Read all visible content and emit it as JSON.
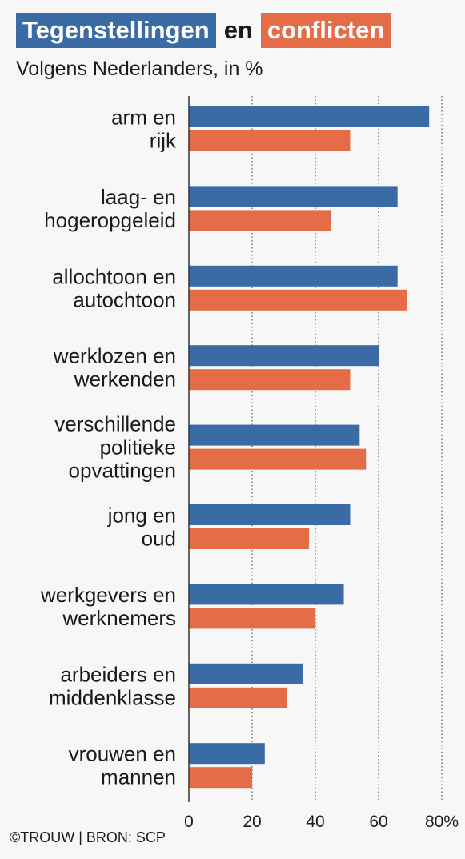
{
  "title": {
    "part1": "Tegenstellingen",
    "part2": "en",
    "part3": "conflicten"
  },
  "subtitle": "Volgens Nederlanders, in %",
  "source": "©TROUW | BRON: SCP",
  "colors": {
    "series1": "#3b6ba5",
    "series2": "#e46d48",
    "axis": "#333333",
    "grid": "#555555",
    "background": "#f7f7f7"
  },
  "chart_data": {
    "type": "bar",
    "orientation": "horizontal",
    "categories": [
      [
        "arm en",
        "rijk"
      ],
      [
        "laag- en",
        "hogeropgeleid"
      ],
      [
        "allochtoon en",
        "autochtoon"
      ],
      [
        "werklozen en",
        "werkenden"
      ],
      [
        "verschillende",
        "politieke",
        "opvattingen"
      ],
      [
        "jong en",
        "oud"
      ],
      [
        "werkgevers en",
        "werknemers"
      ],
      [
        "arbeiders en",
        "middenklasse"
      ],
      [
        "vrouwen en",
        "mannen"
      ]
    ],
    "series": [
      {
        "name": "Tegenstellingen",
        "values": [
          76,
          66,
          66,
          60,
          54,
          51,
          49,
          36,
          24
        ]
      },
      {
        "name": "conflicten",
        "values": [
          51,
          45,
          69,
          51,
          56,
          38,
          40,
          31,
          20
        ]
      }
    ],
    "xlim": [
      0,
      80
    ],
    "xticks": [
      "0",
      "20",
      "40",
      "60",
      "80%"
    ],
    "grid": "dotted vertical"
  }
}
